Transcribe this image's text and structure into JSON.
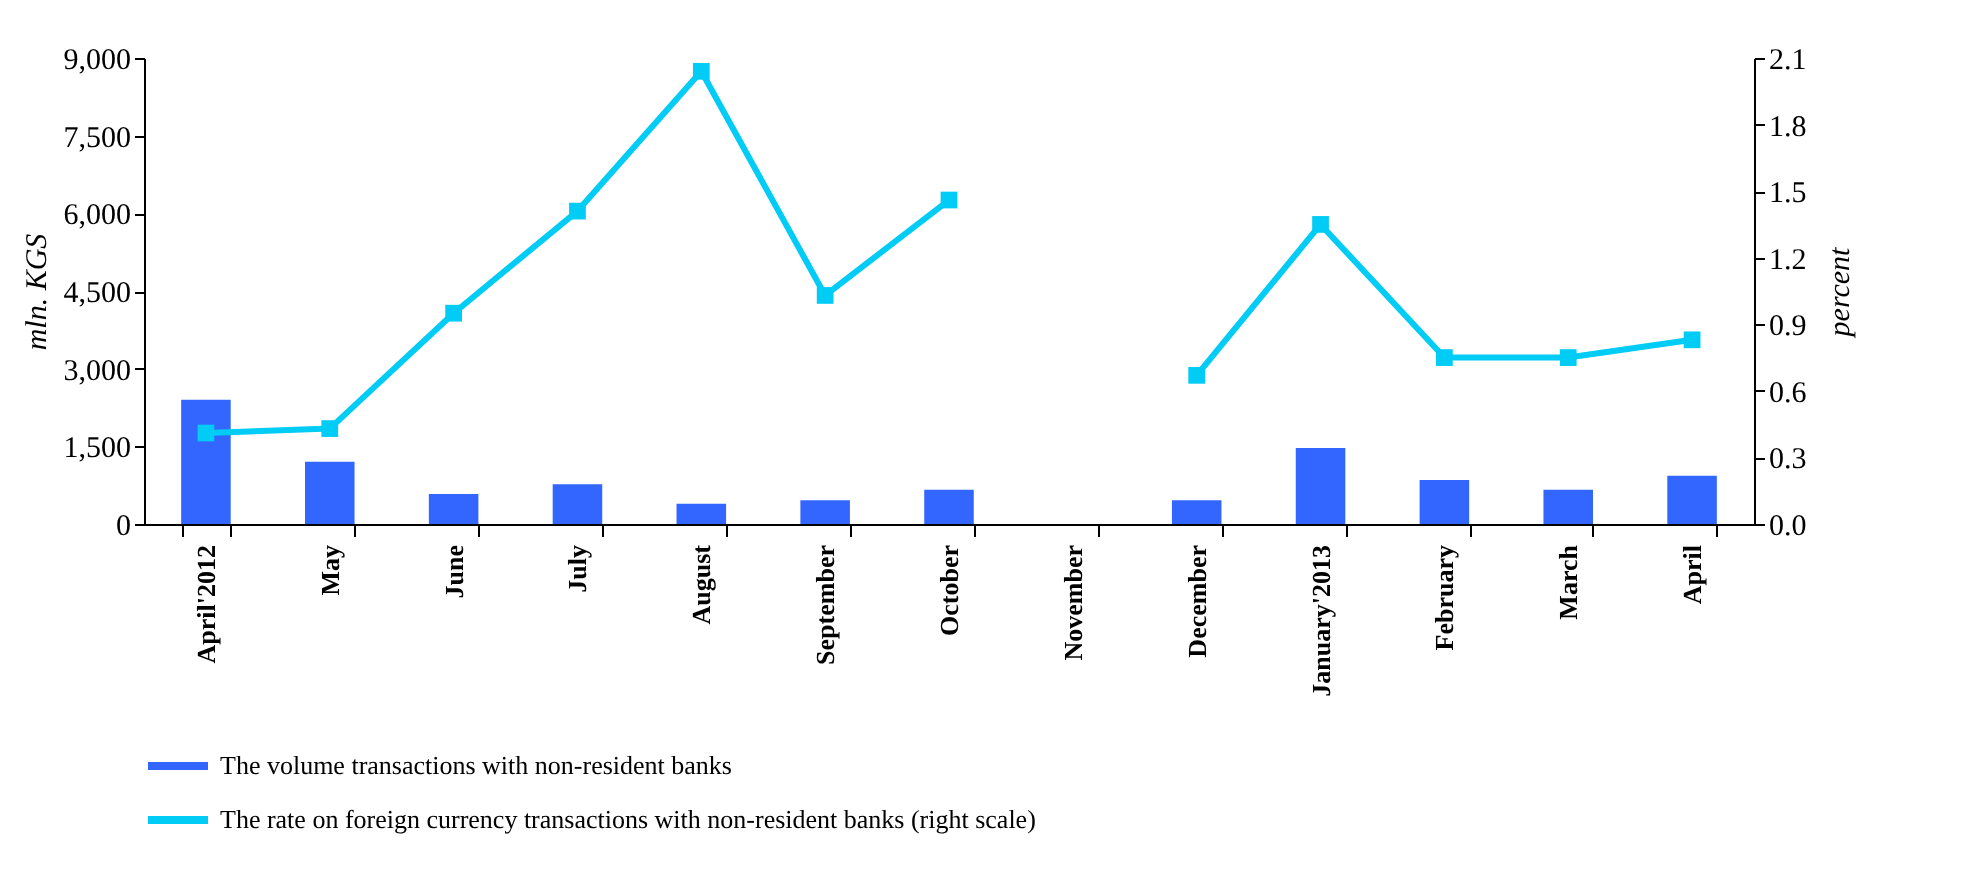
{
  "chart_data": {
    "type": "bar",
    "ylabel": "mln. KGS",
    "y2label": "percent",
    "categories": [
      "April'2012",
      "May",
      "June",
      "July",
      "August",
      "September",
      "October",
      "November",
      "December",
      "January'2013",
      "February",
      "March",
      "April"
    ],
    "series": [
      {
        "name": "The volume transactions with non-resident banks",
        "color": "#3366ff",
        "values": [
          2400,
          1200,
          580,
          770,
          390,
          460,
          660,
          null,
          460,
          1470,
          850,
          660,
          930
        ]
      },
      {
        "name": "The rate on foreign currency transactions with non-resident banks (right scale)",
        "type": "line",
        "axis": "y2",
        "color": "#00ccf5",
        "marker": "square",
        "values": [
          0.41,
          0.43,
          0.95,
          1.41,
          2.04,
          1.03,
          1.46,
          null,
          0.67,
          1.35,
          0.75,
          0.75,
          0.83
        ]
      }
    ],
    "ylim": [
      0,
      9000
    ],
    "yticks": [
      {
        "value": 0,
        "label": "0"
      },
      {
        "value": 1500,
        "label": "1,500"
      },
      {
        "value": 3000,
        "label": "3,000"
      },
      {
        "value": 4500,
        "label": "4,500"
      },
      {
        "value": 6000,
        "label": "6,000"
      },
      {
        "value": 7500,
        "label": "7,500"
      },
      {
        "value": 9000,
        "label": "9,000"
      }
    ],
    "y2lim": [
      0,
      2.1
    ],
    "y2ticks": [
      {
        "value": 0,
        "label": "0.0"
      },
      {
        "value": 0.3,
        "label": "0.3"
      },
      {
        "value": 0.6,
        "label": "0.6"
      },
      {
        "value": 0.9,
        "label": "0.9"
      },
      {
        "value": 1.2,
        "label": "1.2"
      },
      {
        "value": 1.5,
        "label": "1.5"
      },
      {
        "value": 1.8,
        "label": "1.8"
      },
      {
        "value": 2.1,
        "label": "2.1"
      }
    ],
    "grid": false,
    "legend": "bottom"
  }
}
